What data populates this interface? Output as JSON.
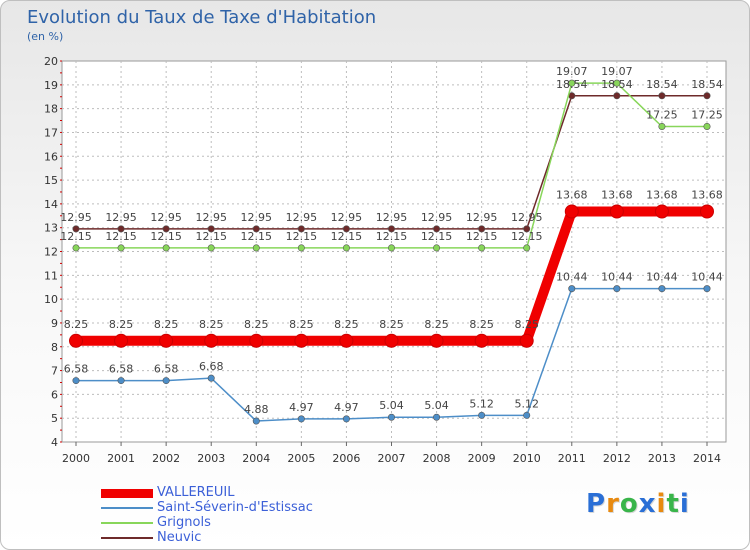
{
  "title": "Evolution du Taux de Taxe d'Habitation",
  "unit_label": "(en %)",
  "logo": {
    "letters": [
      "P",
      "r",
      "o",
      "x",
      "i",
      "t",
      "i"
    ],
    "colors": [
      "#2a6fd6",
      "#e88a10",
      "#39b54a",
      "#2a6fd6",
      "#e88a10",
      "#39b54a",
      "#2a6fd6"
    ]
  },
  "chart_data": {
    "type": "line",
    "title": "Evolution du Taux de Taxe d'Habitation",
    "ylabel": "(en %)",
    "xlabel": "",
    "ylim": [
      4,
      20
    ],
    "yticks": [
      "4",
      "5",
      "6",
      "7",
      "8",
      "9",
      "10",
      "11",
      "12",
      "13",
      "14",
      "15",
      "16",
      "17",
      "18",
      "19",
      "20"
    ],
    "x": [
      "2000",
      "2001",
      "2002",
      "2003",
      "2004",
      "2005",
      "2006",
      "2007",
      "2008",
      "2009",
      "2010",
      "2011",
      "2012",
      "2013",
      "2014"
    ],
    "grid": true,
    "legend_position": "bottom-left",
    "series": [
      {
        "name": "Neuvic",
        "color": "#6e2a2a",
        "values": [
          12.95,
          12.95,
          12.95,
          12.95,
          12.95,
          12.95,
          12.95,
          12.95,
          12.95,
          12.95,
          12.95,
          18.54,
          18.54,
          18.54,
          18.54
        ],
        "labels": [
          "12.95",
          "12.95",
          "12.95",
          "12.95",
          "12.95",
          "12.95",
          "12.95",
          "12.95",
          "12.95",
          "12.95",
          "12.95",
          "18.54",
          "18.54",
          "18.54",
          "18.54"
        ]
      },
      {
        "name": "Grignols",
        "color": "#88d65a",
        "values": [
          12.15,
          12.15,
          12.15,
          12.15,
          12.15,
          12.15,
          12.15,
          12.15,
          12.15,
          12.15,
          12.15,
          19.07,
          19.07,
          17.25,
          17.25
        ],
        "labels": [
          "12.15",
          "12.15",
          "12.15",
          "12.15",
          "12.15",
          "12.15",
          "12.15",
          "12.15",
          "12.15",
          "12.15",
          "12.15",
          "19.07",
          "19.07",
          "17.25",
          "17.25"
        ]
      },
      {
        "name": "Saint-Séverin-d'Estissac",
        "color": "#4d8ec8",
        "values": [
          6.58,
          6.58,
          6.58,
          6.68,
          4.88,
          4.97,
          4.97,
          5.04,
          5.04,
          5.12,
          5.12,
          10.44,
          10.44,
          10.44,
          10.44
        ],
        "labels": [
          "6.58",
          "6.58",
          "6.58",
          "6.68",
          "4.88",
          "4.97",
          "4.97",
          "5.04",
          "5.04",
          "5.12",
          "5.12",
          "10.44",
          "10.44",
          "10.44",
          "10.44"
        ]
      },
      {
        "name": "VALLEREUIL",
        "color": "#f00000",
        "values": [
          8.25,
          8.25,
          8.25,
          8.25,
          8.25,
          8.25,
          8.25,
          8.25,
          8.25,
          8.25,
          8.25,
          13.68,
          13.68,
          13.68,
          13.68
        ],
        "labels": [
          "8.25",
          "8.25",
          "8.25",
          "8.25",
          "8.25",
          "8.25",
          "8.25",
          "8.25",
          "8.25",
          "8.25",
          "8.25",
          "13.68",
          "13.68",
          "13.68",
          "13.68"
        ]
      }
    ],
    "legend_order": [
      "VALLEREUIL",
      "Saint-Séverin-d'Estissac",
      "Grignols",
      "Neuvic"
    ]
  }
}
